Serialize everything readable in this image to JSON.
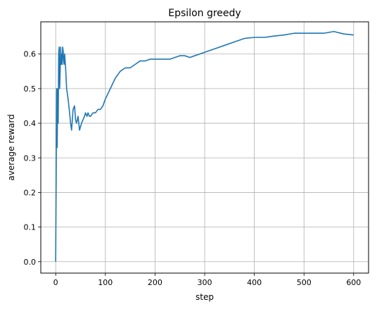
{
  "chart_data": {
    "type": "line",
    "title": "Epsilon greedy",
    "xlabel": "step",
    "ylabel": "average reward",
    "xlim": [
      -30,
      630
    ],
    "ylim": [
      -0.033,
      0.693
    ],
    "xticks": [
      0,
      100,
      200,
      300,
      400,
      500,
      600
    ],
    "yticks": [
      0.0,
      0.1,
      0.2,
      0.3,
      0.4,
      0.5,
      0.6
    ],
    "grid": true,
    "line_color": "#1f77b4",
    "series": [
      {
        "x": [
          0,
          2,
          3,
          4,
          5,
          6,
          7,
          8,
          9,
          10,
          11,
          12,
          13,
          14,
          15,
          16,
          17,
          18,
          20,
          22,
          25,
          28,
          30,
          32,
          35,
          38,
          40,
          42,
          45,
          48,
          50,
          52,
          55,
          58,
          60,
          63,
          65,
          68,
          70,
          75,
          80,
          85,
          90,
          95,
          100,
          110,
          120,
          130,
          140,
          150,
          160,
          170,
          180,
          190,
          200,
          210,
          220,
          230,
          240,
          250,
          260,
          270,
          280,
          290,
          300,
          320,
          340,
          360,
          380,
          400,
          420,
          440,
          460,
          480,
          500,
          520,
          540,
          560,
          580,
          600
        ],
        "y": [
          0.0,
          0.5,
          0.33,
          0.5,
          0.4,
          0.6,
          0.62,
          0.5,
          0.55,
          0.62,
          0.57,
          0.6,
          0.57,
          0.62,
          0.61,
          0.58,
          0.57,
          0.6,
          0.56,
          0.5,
          0.47,
          0.43,
          0.4,
          0.38,
          0.44,
          0.45,
          0.41,
          0.4,
          0.42,
          0.38,
          0.39,
          0.4,
          0.41,
          0.42,
          0.43,
          0.42,
          0.43,
          0.42,
          0.42,
          0.43,
          0.43,
          0.44,
          0.44,
          0.45,
          0.47,
          0.5,
          0.53,
          0.55,
          0.56,
          0.56,
          0.57,
          0.58,
          0.58,
          0.585,
          0.585,
          0.585,
          0.585,
          0.585,
          0.59,
          0.595,
          0.595,
          0.59,
          0.595,
          0.6,
          0.605,
          0.615,
          0.625,
          0.635,
          0.645,
          0.648,
          0.648,
          0.652,
          0.655,
          0.66,
          0.66,
          0.66,
          0.66,
          0.665,
          0.658,
          0.655
        ]
      }
    ]
  }
}
